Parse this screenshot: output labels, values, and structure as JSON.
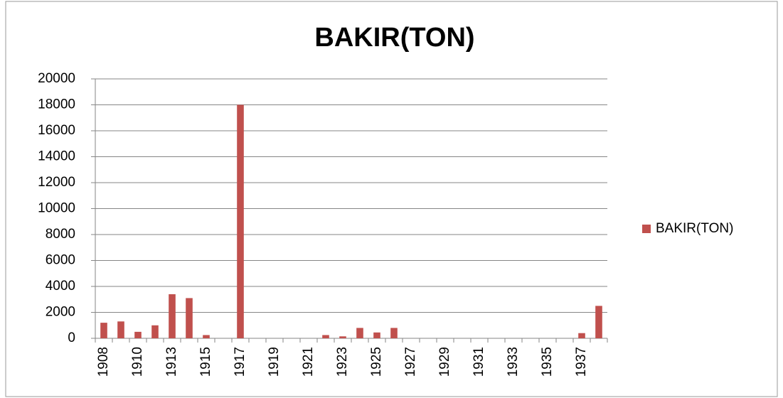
{
  "chart_data": {
    "type": "bar",
    "title": "BAKIR(TON)",
    "categories": [
      "1908",
      null,
      "1910",
      null,
      "1913",
      null,
      "1915",
      null,
      "1917",
      null,
      "1919",
      null,
      "1921",
      null,
      "1923",
      null,
      "1925",
      null,
      "1927",
      null,
      "1929",
      null,
      "1931",
      null,
      "1933",
      null,
      "1935",
      null,
      "1937",
      null
    ],
    "series": [
      {
        "name": "BAKIR(TON)",
        "color": "#c0504d",
        "values": [
          1200,
          1300,
          500,
          1000,
          3400,
          3100,
          250,
          0,
          18000,
          0,
          0,
          0,
          0,
          250,
          150,
          800,
          450,
          800,
          0,
          0,
          0,
          0,
          0,
          0,
          0,
          0,
          0,
          0,
          400,
          2500
        ]
      }
    ],
    "ylim": [
      0,
      20000
    ],
    "yticks": [
      0,
      2000,
      4000,
      6000,
      8000,
      10000,
      12000,
      14000,
      16000,
      18000,
      20000
    ],
    "grid": true,
    "legend": "right"
  }
}
